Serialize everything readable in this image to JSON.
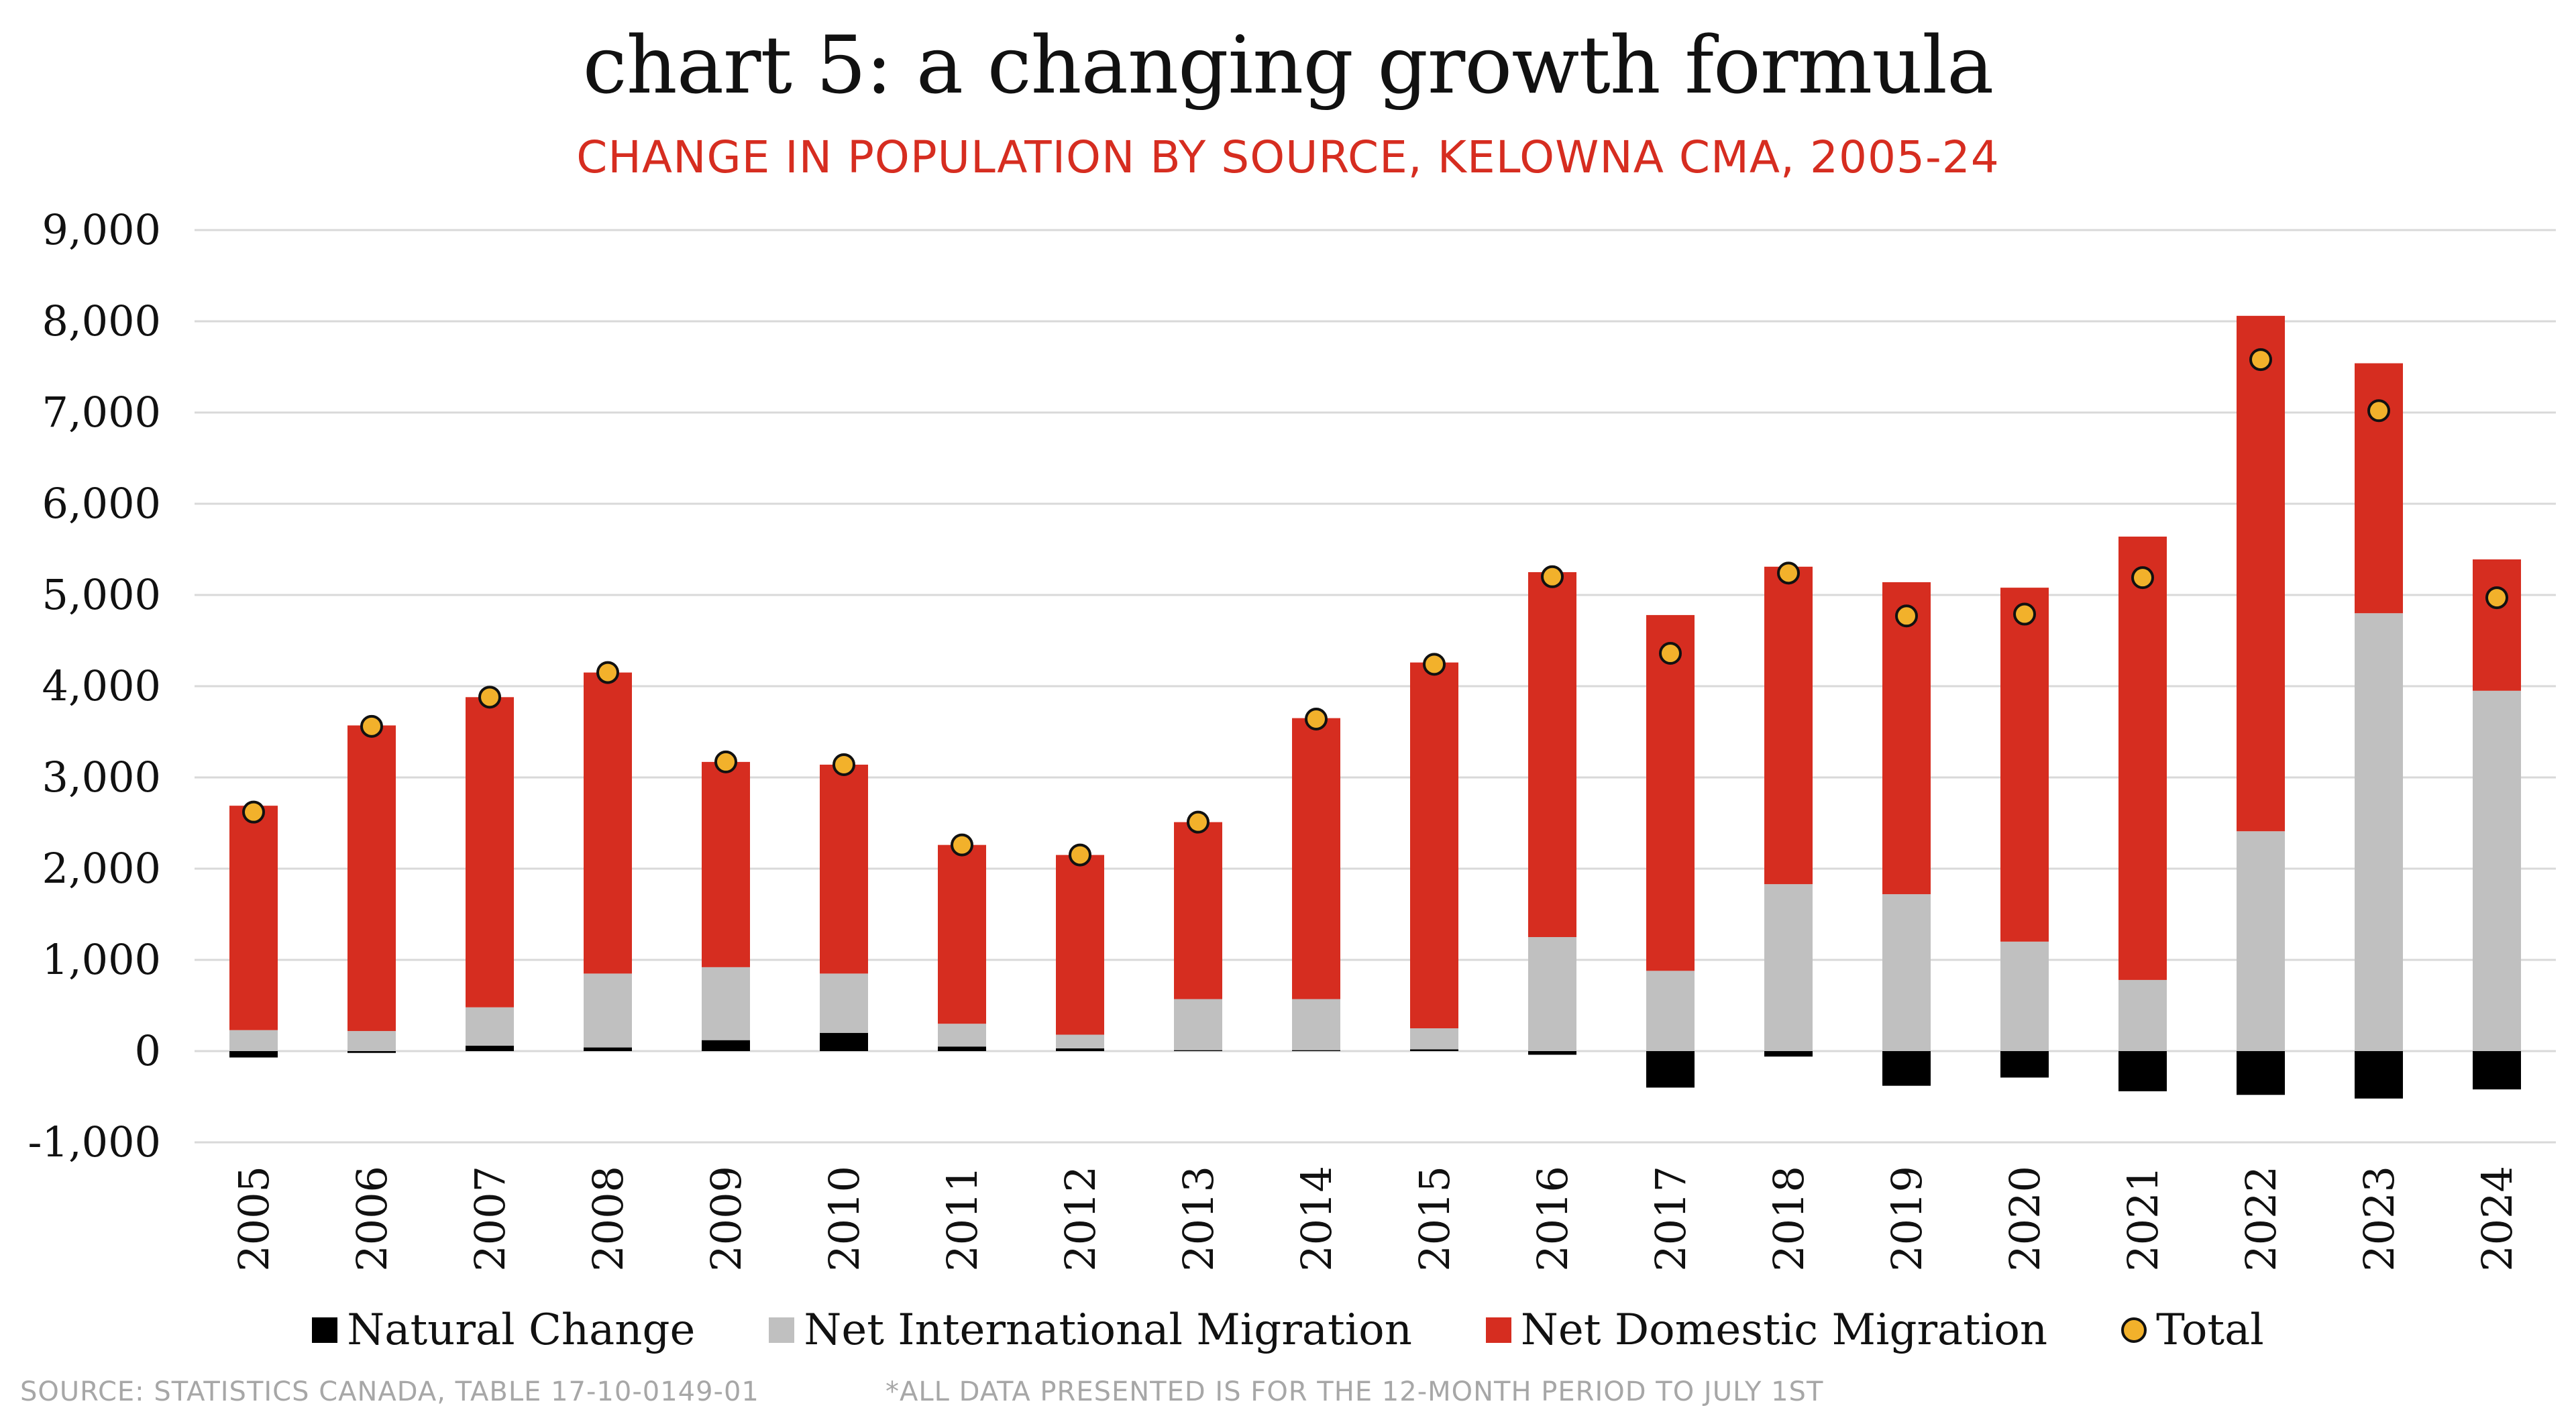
{
  "chart_data": {
    "type": "bar",
    "stacked": true,
    "title": "chart 5: a changing growth formula",
    "subtitle": "CHANGE IN POPULATION BY SOURCE, KELOWNA CMA, 2005-24",
    "categories": [
      "2005",
      "2006",
      "2007",
      "2008",
      "2009",
      "2010",
      "2011",
      "2012",
      "2013",
      "2014",
      "2015",
      "2016",
      "2017",
      "2018",
      "2019",
      "2020",
      "2021",
      "2022",
      "2023",
      "2024"
    ],
    "ylim": [
      -1000,
      9000
    ],
    "yticks": [
      -1000,
      0,
      1000,
      2000,
      3000,
      4000,
      5000,
      6000,
      7000,
      8000,
      9000
    ],
    "ytick_labels": [
      "-1,000",
      "0",
      "1,000",
      "2,000",
      "3,000",
      "4,000",
      "5,000",
      "6,000",
      "7,000",
      "8,000",
      "9,000"
    ],
    "grid": "horizontal",
    "legend_position": "bottom",
    "series": [
      {
        "name": "Natural Change",
        "color": "#000000",
        "values": [
          -70,
          -20,
          60,
          40,
          120,
          200,
          50,
          30,
          10,
          10,
          20,
          -40,
          -400,
          -60,
          -380,
          -290,
          -440,
          -480,
          -520,
          -420
        ]
      },
      {
        "name": "Net International Migration",
        "color": "#c0c0c0",
        "values": [
          230,
          220,
          420,
          810,
          800,
          650,
          250,
          150,
          560,
          560,
          230,
          1250,
          880,
          1830,
          1720,
          1200,
          780,
          2410,
          4800,
          3950
        ]
      },
      {
        "name": "Net Domestic Migration",
        "color": "#d62d20",
        "values": [
          2460,
          3350,
          3400,
          3300,
          2250,
          2290,
          1960,
          1970,
          1940,
          3080,
          4010,
          4000,
          3900,
          3480,
          3420,
          3880,
          4860,
          5650,
          2740,
          1440
        ]
      },
      {
        "name": "Total",
        "color": "#f2b12b",
        "type": "scatter",
        "values": [
          2620,
          3560,
          3880,
          4150,
          3170,
          3140,
          2260,
          2150,
          2510,
          3640,
          4240,
          5200,
          4360,
          5240,
          4770,
          4790,
          5190,
          7580,
          7020,
          4970
        ]
      }
    ]
  },
  "footer": {
    "source": "SOURCE: STATISTICS CANADA, TABLE 17-10-0149-01",
    "note": "*ALL DATA PRESENTED IS FOR THE 12-MONTH PERIOD TO JULY 1ST"
  }
}
